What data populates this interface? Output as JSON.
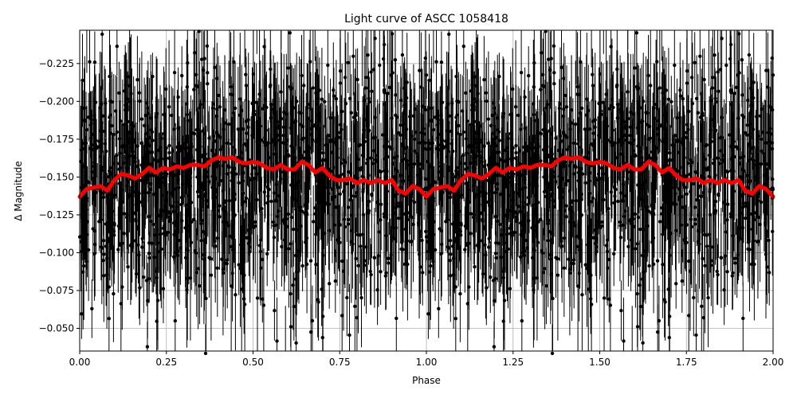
{
  "chart_data": {
    "type": "scatter",
    "title": "Light curve of ASCC 1058418",
    "xlabel": "Phase",
    "ylabel": "Δ Magnitude",
    "xlim": [
      0.0,
      2.0
    ],
    "ylim": [
      -0.035,
      -0.247
    ],
    "y_inverted": true,
    "grid": true,
    "x_ticks": [
      "0.00",
      "0.25",
      "0.50",
      "0.75",
      "1.00",
      "1.25",
      "1.50",
      "1.75",
      "2.00"
    ],
    "x_tick_values": [
      0.0,
      0.25,
      0.5,
      0.75,
      1.0,
      1.25,
      1.5,
      1.75,
      2.0
    ],
    "y_ticks": [
      "−0.050",
      "−0.075",
      "−0.100",
      "−0.125",
      "−0.150",
      "−0.175",
      "−0.200",
      "−0.225"
    ],
    "y_tick_values": [
      -0.05,
      -0.075,
      -0.1,
      -0.125,
      -0.15,
      -0.175,
      -0.2,
      -0.225
    ],
    "series": [
      {
        "kind": "points_with_errorbars",
        "color": "#000000",
        "description_mean": -0.148,
        "spread_sd": 0.038,
        "typical_error": 0.03
      },
      {
        "kind": "binned_mean_line",
        "color": "#ff0000",
        "x": [
          0.0,
          0.02,
          0.04,
          0.06,
          0.08,
          0.1,
          0.12,
          0.14,
          0.16,
          0.18,
          0.2,
          0.22,
          0.24,
          0.26,
          0.28,
          0.3,
          0.32,
          0.34,
          0.36,
          0.38,
          0.4,
          0.42,
          0.44,
          0.46,
          0.48,
          0.5,
          0.52,
          0.54,
          0.56,
          0.58,
          0.6,
          0.62,
          0.64,
          0.66,
          0.68,
          0.7,
          0.72,
          0.74,
          0.76,
          0.78,
          0.8,
          0.82,
          0.84,
          0.86,
          0.88,
          0.9,
          0.92,
          0.94,
          0.96,
          0.98,
          1.0
        ],
        "y": [
          -0.137,
          -0.142,
          -0.143,
          -0.144,
          -0.141,
          -0.148,
          -0.152,
          -0.151,
          -0.149,
          -0.152,
          -0.156,
          -0.153,
          -0.156,
          -0.155,
          -0.157,
          -0.156,
          -0.158,
          -0.158,
          -0.157,
          -0.161,
          -0.163,
          -0.162,
          -0.163,
          -0.16,
          -0.159,
          -0.16,
          -0.159,
          -0.156,
          -0.155,
          -0.158,
          -0.155,
          -0.155,
          -0.16,
          -0.158,
          -0.153,
          -0.156,
          -0.151,
          -0.148,
          -0.148,
          -0.149,
          -0.146,
          -0.148,
          -0.146,
          -0.148,
          -0.146,
          -0.148,
          -0.141,
          -0.139,
          -0.144,
          -0.142,
          -0.137
        ]
      }
    ]
  }
}
